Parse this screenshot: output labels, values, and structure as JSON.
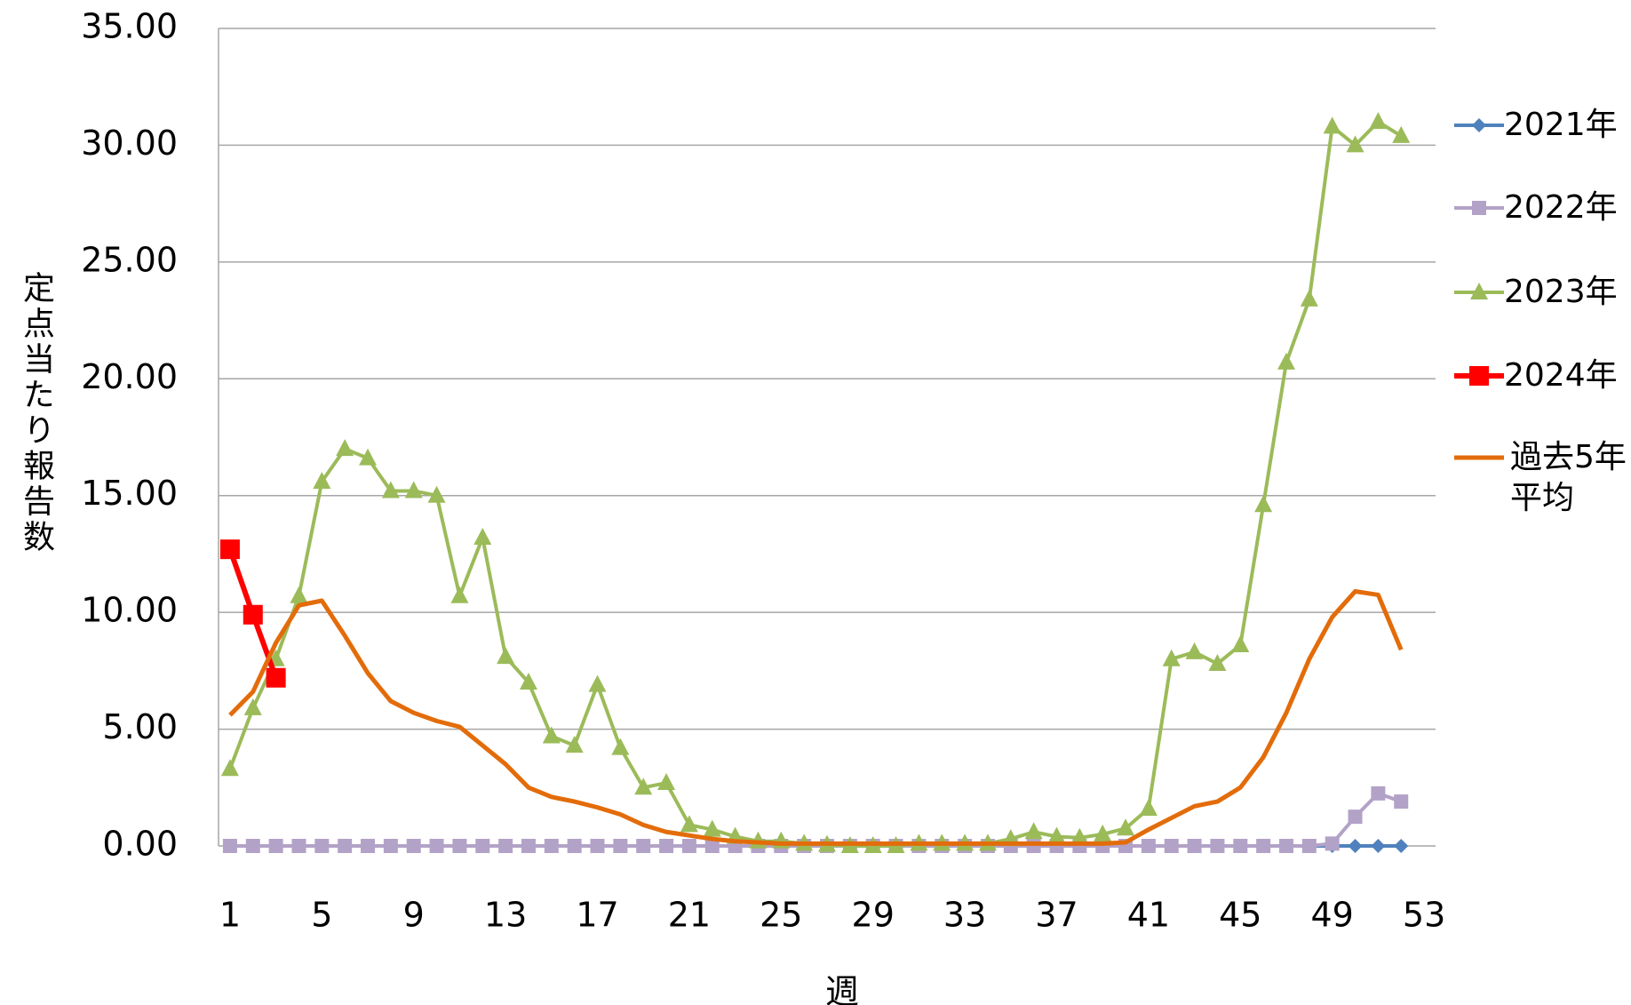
{
  "chart_data": {
    "type": "line",
    "x_label": "週",
    "y_label": "定点当たり報告数",
    "categories": [
      1,
      null,
      null,
      null,
      5,
      null,
      null,
      null,
      9,
      null,
      null,
      null,
      13,
      null,
      null,
      null,
      17,
      null,
      null,
      null,
      21,
      null,
      null,
      null,
      25,
      null,
      null,
      null,
      29,
      null,
      null,
      null,
      33,
      null,
      null,
      null,
      37,
      null,
      null,
      null,
      41,
      null,
      null,
      null,
      45,
      null,
      null,
      null,
      49,
      null,
      null,
      null,
      53
    ],
    "ylim": [
      0,
      35
    ],
    "yticks": [
      {
        "value": 0,
        "label": "0.00"
      },
      {
        "value": 5,
        "label": "5.00"
      },
      {
        "value": 10,
        "label": "10.00"
      },
      {
        "value": 15,
        "label": "15.00"
      },
      {
        "value": 20,
        "label": "20.00"
      },
      {
        "value": 25,
        "label": "25.00"
      },
      {
        "value": 30,
        "label": "30.00"
      },
      {
        "value": 35,
        "label": "35.00"
      }
    ],
    "grid": true,
    "legend": "right",
    "series": [
      {
        "name": "2021年",
        "color": "#4f81bd",
        "marker": "diamond",
        "values": [
          0,
          0,
          0,
          0,
          0,
          0,
          0,
          0,
          0,
          0,
          0,
          0,
          0,
          0,
          0,
          0,
          0,
          0,
          0,
          0,
          0,
          0,
          0,
          0,
          0,
          0,
          0,
          0,
          0,
          0,
          0,
          0,
          0,
          0,
          0,
          0,
          0,
          0,
          0,
          0,
          0,
          0,
          0,
          0,
          0,
          0,
          0,
          0,
          0,
          0,
          0,
          0,
          null
        ]
      },
      {
        "name": "2022年",
        "color": "#b3a2c7",
        "marker": "square",
        "values": [
          0,
          0,
          0,
          0,
          0,
          0,
          0,
          0,
          0,
          0,
          0,
          0,
          0,
          0,
          0,
          0,
          0,
          0,
          0,
          0,
          0,
          0,
          0,
          0,
          0,
          0,
          0,
          0,
          0,
          0,
          0,
          0,
          0,
          0,
          0,
          0,
          0,
          0,
          0,
          0,
          0,
          0,
          0,
          0,
          0,
          0,
          0,
          0,
          0.1,
          1.25,
          2.25,
          1.9,
          null
        ]
      },
      {
        "name": "2023年",
        "color": "#9bbb59",
        "marker": "triangle",
        "values": [
          3.3,
          5.9,
          8.0,
          10.7,
          15.6,
          17.0,
          16.6,
          15.2,
          15.2,
          15.0,
          10.7,
          13.2,
          8.1,
          7.0,
          4.7,
          4.3,
          6.9,
          4.2,
          2.5,
          2.7,
          0.9,
          0.7,
          0.4,
          0.2,
          0.2,
          0.1,
          0.05,
          0,
          0,
          0,
          0.1,
          0.1,
          0.1,
          0.1,
          0.3,
          0.6,
          0.4,
          0.35,
          0.5,
          0.75,
          1.6,
          8.0,
          8.3,
          7.8,
          8.6,
          14.6,
          20.7,
          23.4,
          30.8,
          30.0,
          31.0,
          30.4,
          null
        ]
      },
      {
        "name": "2024年",
        "color": "#ff0000",
        "marker": "bigsquare",
        "values": [
          12.7,
          9.9,
          7.2,
          null,
          null,
          null,
          null,
          null,
          null,
          null,
          null,
          null,
          null,
          null,
          null,
          null,
          null,
          null,
          null,
          null,
          null,
          null,
          null,
          null,
          null,
          null,
          null,
          null,
          null,
          null,
          null,
          null,
          null,
          null,
          null,
          null,
          null,
          null,
          null,
          null,
          null,
          null,
          null,
          null,
          null,
          null,
          null,
          null,
          null,
          null,
          null,
          null,
          null
        ]
      },
      {
        "name": "過去5年平均",
        "color": "#e36c0a",
        "marker": "none",
        "values": [
          5.6,
          6.6,
          8.7,
          10.3,
          10.5,
          9.0,
          7.4,
          6.2,
          5.7,
          5.35,
          5.1,
          4.3,
          3.5,
          2.5,
          2.1,
          1.9,
          1.65,
          1.35,
          0.9,
          0.6,
          0.45,
          0.3,
          0.2,
          0.15,
          0.1,
          0.1,
          0.1,
          0.1,
          0.1,
          0.1,
          0.1,
          0.1,
          0.1,
          0.1,
          0.1,
          0.1,
          0.1,
          0.1,
          0.1,
          0.15,
          0.7,
          1.2,
          1.7,
          1.9,
          2.5,
          3.8,
          5.7,
          8.0,
          9.8,
          10.9,
          10.75,
          8.4,
          null
        ]
      }
    ]
  }
}
